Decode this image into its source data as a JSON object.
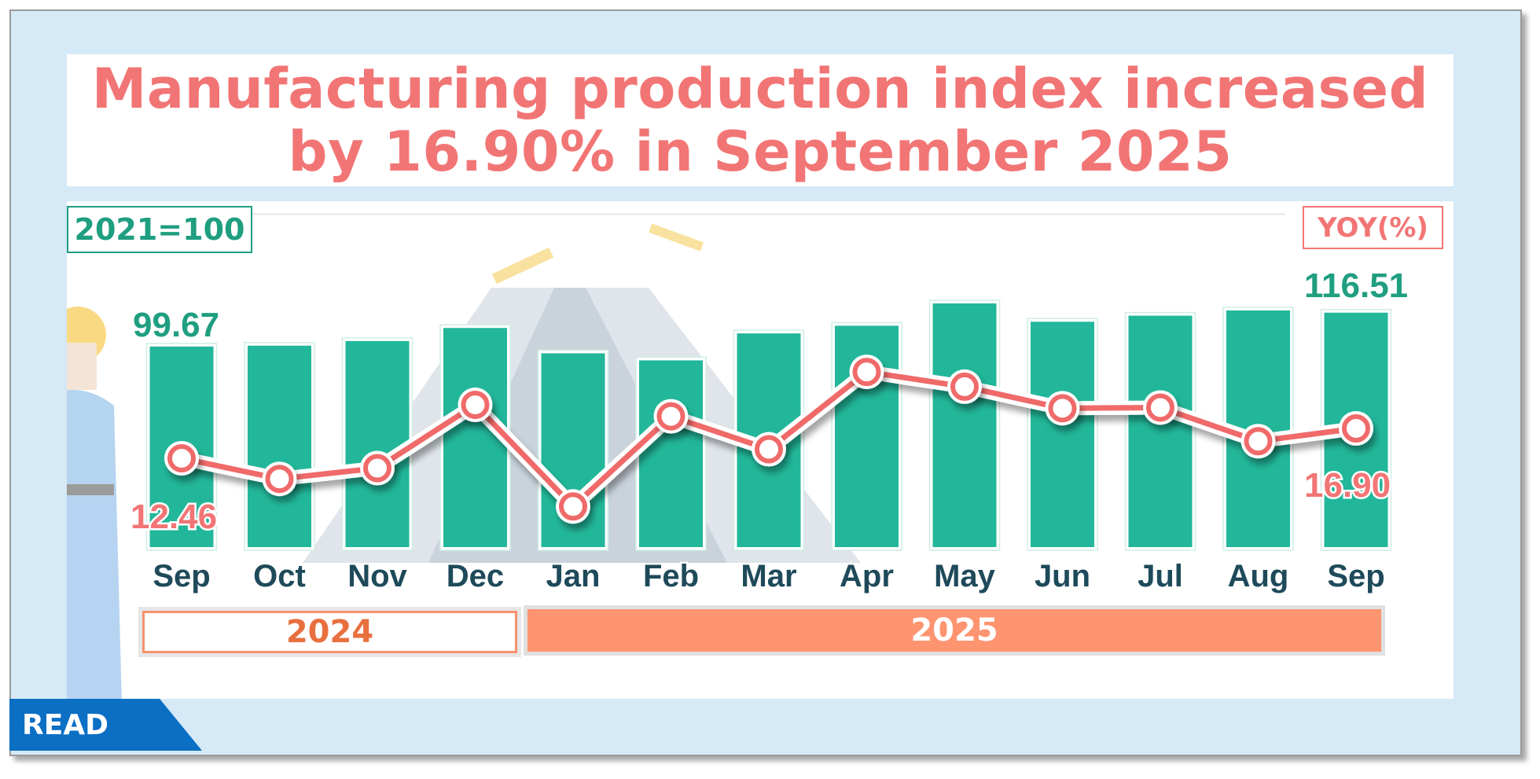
{
  "title": "Manufacturing production index increased by 16.90% in September 2025",
  "title_lines": [
    "Manufacturing production index increased",
    "by 16.90% in September 2025"
  ],
  "base_label": "2021=100",
  "yoy_label": "YOY(%)",
  "read_tag": "READ",
  "colors": {
    "bar": "#22b79a",
    "line": "#f06a6a",
    "index_label": "#1f9e80",
    "yoy_text": "#f27575",
    "year_2025": "#ff9470",
    "month_text": "#1e4a5a"
  },
  "chart_data": {
    "type": "bar+line",
    "categories": [
      "Sep",
      "Oct",
      "Nov",
      "Dec",
      "Jan",
      "Feb",
      "Mar",
      "Apr",
      "May",
      "Jun",
      "Jul",
      "Aug",
      "Sep"
    ],
    "year_groups": [
      {
        "label": "2024",
        "months": 4
      },
      {
        "label": "2025",
        "months": 9
      }
    ],
    "series": [
      {
        "type": "bar",
        "axis": "index",
        "values": [
          99.67,
          100.1,
          102.4,
          108.9,
          96.3,
          92.8,
          106.2,
          110.0,
          121.1,
          112.0,
          115.0,
          117.6,
          116.51
        ]
      },
      {
        "type": "line",
        "axis": "yoy",
        "values": [
          12.46,
          9.4,
          11.0,
          20.4,
          5.3,
          18.7,
          13.8,
          25.3,
          23.1,
          19.9,
          20.0,
          15.0,
          16.9
        ]
      }
    ],
    "data_labels": {
      "index_first": "99.67",
      "index_last": "116.51",
      "yoy_first": "12.46",
      "yoy_last": "16.90"
    },
    "grid": false,
    "legend": "none"
  }
}
